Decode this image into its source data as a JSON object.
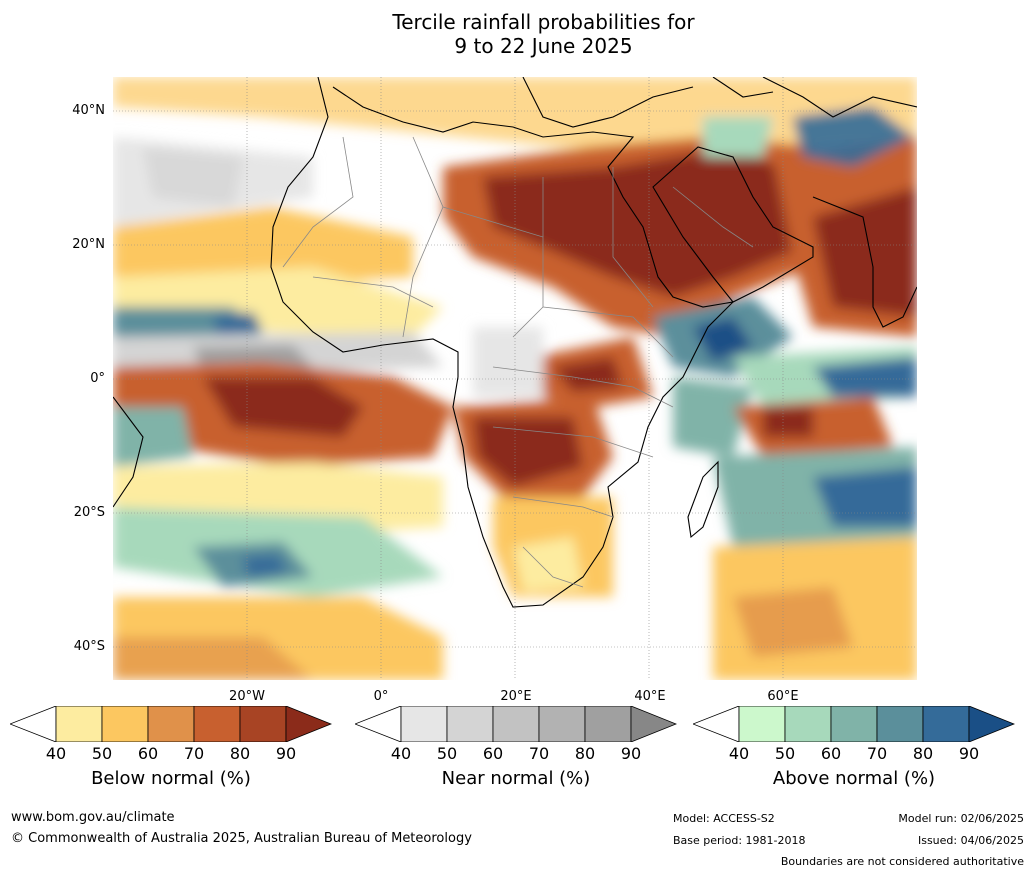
{
  "title": {
    "line1": "Tercile rainfall probabilities for",
    "line2": "9 to 22 June 2025"
  },
  "map": {
    "lat_labels": [
      "40°N",
      "20°N",
      "0°",
      "20°S",
      "40°S"
    ],
    "lon_labels": [
      "20°W",
      "0°",
      "20°E",
      "40°E",
      "60°E"
    ]
  },
  "colorbars": [
    {
      "name": "below",
      "title": "Below normal (%)",
      "ticks": [
        "40",
        "50",
        "60",
        "70",
        "80",
        "90"
      ],
      "colors": [
        "#fdeca0",
        "#fcc760",
        "#e0914a",
        "#c8602f",
        "#a84424",
        "#8b2b1a"
      ]
    },
    {
      "name": "near",
      "title": "Near normal (%)",
      "ticks": [
        "40",
        "50",
        "60",
        "70",
        "80",
        "90"
      ],
      "colors": [
        "#e6e6e6",
        "#d4d4d4",
        "#c2c2c2",
        "#b2b2b2",
        "#a0a0a0",
        "#878787"
      ]
    },
    {
      "name": "above",
      "title": "Above normal (%)",
      "ticks": [
        "40",
        "50",
        "60",
        "70",
        "80",
        "90"
      ],
      "colors": [
        "#ccf8cc",
        "#a7d9bb",
        "#80b3a8",
        "#5b8f9b",
        "#346b99",
        "#1a4f86"
      ]
    }
  ],
  "footer": {
    "website": "www.bom.gov.au/climate",
    "copyright": "© Commonwealth of Australia 2025, Australian Bureau of Meteorology",
    "model": "Model: ACCESS-S2",
    "base_period": "Base period: 1981-2018",
    "model_run": "Model run: 02/06/2025",
    "issued": "Issued: 04/06/2025",
    "boundaries_note": "Boundaries are not considered authoritative"
  }
}
